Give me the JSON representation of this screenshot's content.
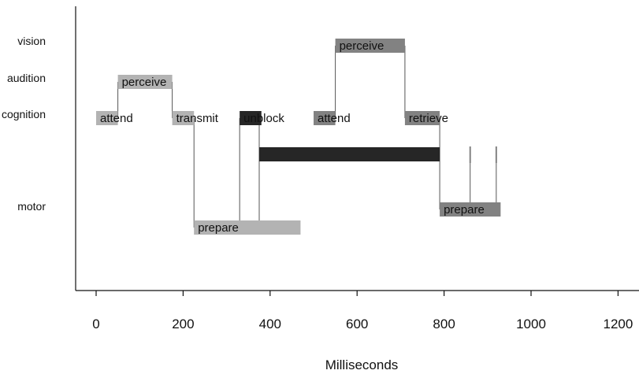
{
  "chart_data": {
    "type": "gantt",
    "title": "",
    "xlabel": "Milliseconds",
    "ylabel": "",
    "xlim": [
      -50,
      1200
    ],
    "x_ticks": [
      0,
      200,
      400,
      600,
      800,
      1000,
      1200
    ],
    "rows": [
      "vision",
      "audition",
      "cognition",
      "motor"
    ],
    "colors": {
      "light": "#b3b3b3",
      "mid": "#828282",
      "dark": "#262626",
      "axis": "#111111",
      "connector": "#555555"
    },
    "bars": [
      {
        "label": "attend",
        "row": "cognition",
        "start": 0,
        "end": 50,
        "shade": "light"
      },
      {
        "label": "perceive",
        "row": "audition",
        "start": 50,
        "end": 175,
        "shade": "light"
      },
      {
        "label": "transmit",
        "row": "cognition",
        "start": 175,
        "end": 225,
        "shade": "light"
      },
      {
        "label": "prepare",
        "row": "motor-lower",
        "start": 225,
        "end": 470,
        "shade": "light"
      },
      {
        "label": "unblock",
        "row": "cognition",
        "start": 330,
        "end": 380,
        "shade": "dark"
      },
      {
        "label": "",
        "row": "motor-busy",
        "start": 375,
        "end": 790,
        "shade": "dark"
      },
      {
        "label": "attend",
        "row": "cognition",
        "start": 500,
        "end": 550,
        "shade": "mid"
      },
      {
        "label": "perceive",
        "row": "vision",
        "start": 550,
        "end": 710,
        "shade": "mid"
      },
      {
        "label": "retrieve",
        "row": "cognition",
        "start": 710,
        "end": 790,
        "shade": "mid"
      },
      {
        "label": "prepare",
        "row": "motor",
        "start": 790,
        "end": 930,
        "shade": "mid"
      }
    ]
  }
}
